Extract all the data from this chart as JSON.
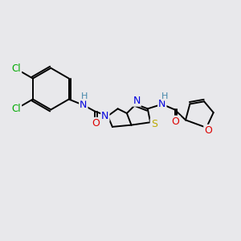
{
  "background_color": "#e8e8eb",
  "atom_colors": {
    "C": "#000000",
    "N": "#0000dd",
    "O": "#dd0000",
    "S": "#bbaa00",
    "Cl": "#00aa00",
    "H": "#4488aa"
  },
  "bond_lw": 1.4,
  "font_size": 8.5,
  "doffset": 2.2
}
